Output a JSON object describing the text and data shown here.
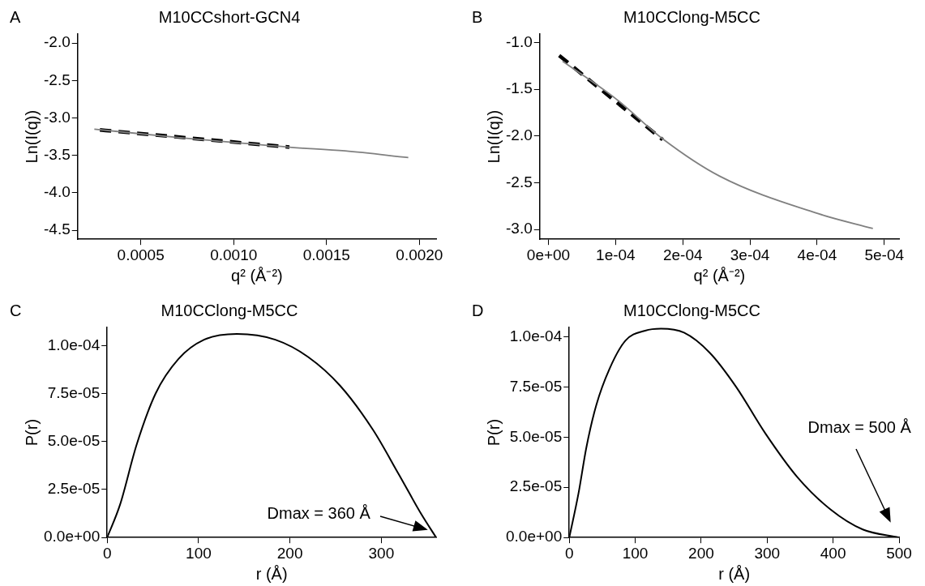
{
  "chart_data": [
    {
      "type": "line",
      "title": "M10CCshort-GCN4",
      "xlabel": "q² (Å⁻²)",
      "ylabel": "Ln(I(q))",
      "xlim": [
        0.00016,
        0.00209
      ],
      "ylim": [
        -4.62,
        -1.88
      ],
      "xticks": [
        0.0005,
        {
          "value": 0.001,
          "label": "0.0010"
        },
        0.0015,
        {
          "value": 0.002,
          "label": "0.0020"
        }
      ],
      "yticks": [
        {
          "value": -2,
          "label": "-2.0"
        },
        -2.5,
        {
          "value": -3,
          "label": "-3.0"
        },
        -3.5,
        {
          "value": -4,
          "label": "-4.0"
        },
        -4.5
      ],
      "annotations": [
        "A"
      ],
      "series": [
        {
          "color": "#808080",
          "x": [
            0.00025,
            0.0007,
            0.0013,
            0.0016,
            0.00194
          ],
          "values": [
            -3.15,
            -3.26,
            -3.39,
            -3.44,
            -3.53
          ]
        },
        {
          "color": "#000000",
          "line_style": "dashed",
          "x": [
            0.00028,
            0.0013
          ],
          "values": [
            -3.16,
            -3.39
          ]
        }
      ]
    },
    {
      "type": "line",
      "title": "M10CClong-M5CC",
      "xlabel": "q² (Å⁻²)",
      "ylabel": "Ln(I(q))",
      "xlim": [
        -1.3e-05,
        0.000522
      ],
      "ylim": [
        -3.105,
        -0.91
      ],
      "xticks": [
        {
          "value": 0,
          "label": "0e+00"
        },
        {
          "value": 0.0001,
          "label": "1e-04"
        },
        {
          "value": 0.0002,
          "label": "2e-04"
        },
        {
          "value": 0.0003,
          "label": "3e-04"
        },
        {
          "value": 0.0004,
          "label": "4e-04"
        },
        {
          "value": 0.0005,
          "label": "5e-04"
        }
      ],
      "yticks": [
        {
          "value": -1,
          "label": "-1.0"
        },
        -1.5,
        {
          "value": -2,
          "label": "-2.0"
        },
        -2.5,
        {
          "value": -3,
          "label": "-3.0"
        }
      ],
      "annotations": [
        "B"
      ],
      "series": [
        {
          "color": "#808080",
          "x": [
            2.1e-05,
            0.0001,
            0.00017,
            0.000255,
            0.000401,
            0.000483
          ],
          "values": [
            -1.2,
            -1.6,
            -2.03,
            -2.43,
            -2.83,
            -2.99
          ]
        },
        {
          "color": "#000000",
          "line_style": "dashed",
          "x": [
            1.6e-05,
            0.00017
          ],
          "values": [
            -1.14,
            -2.04
          ]
        }
      ]
    },
    {
      "type": "line",
      "title": "M10CClong-M5CC",
      "xlabel": "r (Å)",
      "ylabel": "P(r)",
      "xlim": [
        0,
        360
      ],
      "ylim": [
        0,
        0.0001094
      ],
      "xticks": [
        0,
        100,
        200,
        300
      ],
      "yticks": [
        {
          "value": 0,
          "label": "0.0e+00"
        },
        {
          "value": 2.5e-05,
          "label": "2.5e-05"
        },
        {
          "value": 5e-05,
          "label": "5.0e-05"
        },
        {
          "value": 7.5e-05,
          "label": "7.5e-05"
        },
        {
          "value": 0.0001,
          "label": "1.0e-04"
        }
      ],
      "annotations": [
        "C",
        "Dmax = 360 Å"
      ],
      "series": [
        {
          "color": "#000000",
          "x": [
            0,
            14,
            32,
            53,
            78,
            106,
            142,
            184,
            220,
            255,
            291,
            319,
            344,
            360
          ],
          "values": [
            0,
            1.7e-05,
            4.8e-05,
            7.5e-05,
            9.3e-05,
            0.000103,
            0.000106,
            0.000103,
            9.4e-05,
            7.9e-05,
            5.6e-05,
            3.3e-05,
            1.2e-05,
            0
          ]
        }
      ]
    },
    {
      "type": "line",
      "title": "M10CClong-M5CC",
      "xlabel": "r (Å)",
      "ylabel": "P(r)",
      "xlim": [
        0,
        500
      ],
      "ylim": [
        0,
        0.0001046
      ],
      "xticks": [
        0,
        100,
        200,
        300,
        400,
        500
      ],
      "yticks": [
        {
          "value": 0,
          "label": "0.0e+00"
        },
        {
          "value": 2.5e-05,
          "label": "2.5e-05"
        },
        {
          "value": 5e-05,
          "label": "5.0e-05"
        },
        {
          "value": 7.5e-05,
          "label": "7.5e-05"
        },
        {
          "value": 0.0001,
          "label": "1.0e-04"
        }
      ],
      "annotations": [
        "D",
        "Dmax = 500 Å"
      ],
      "series": [
        {
          "color": "#000000",
          "x": [
            0,
            14,
            26,
            41,
            61,
            85,
            115,
            139,
            174,
            213,
            253,
            297,
            346,
            396,
            445,
            500
          ],
          "values": [
            0,
            2.2e-05,
            4.5e-05,
            6.6e-05,
            8.4e-05,
            9.8e-05,
            0.000103,
            0.000104,
            0.000102,
            9.2e-05,
            7.5e-05,
            5.2e-05,
            3e-05,
            1.4e-05,
            4e-06,
            0
          ]
        }
      ]
    }
  ]
}
